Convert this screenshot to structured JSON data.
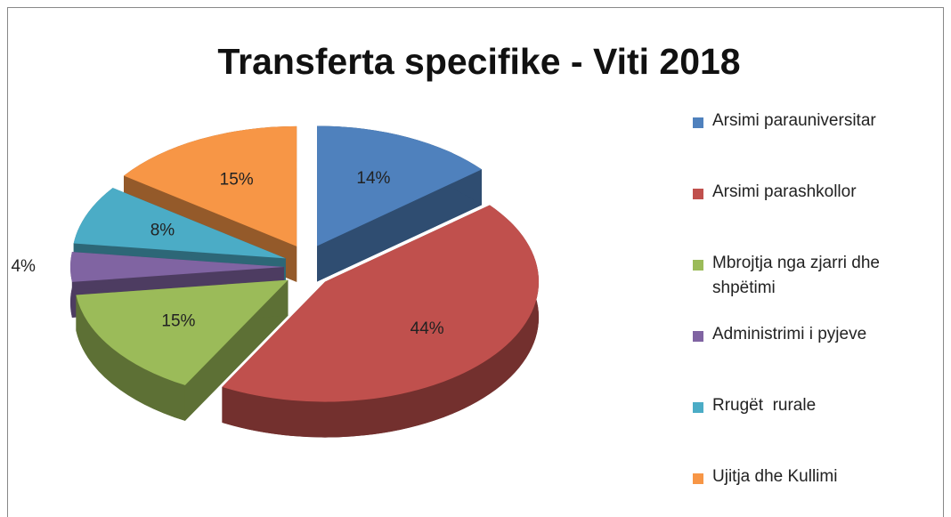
{
  "chart_data": {
    "type": "pie",
    "title": "Transferta specifike - Viti 2018",
    "categories": [
      "Arsimi parauniversitar",
      "Arsimi parashkollor",
      "Mbrojtja nga zjarri dhe shpëtimi",
      "Administrimi i pyjeve",
      "Rrugët  rurale",
      "Ujitja dhe Kullimi"
    ],
    "values": [
      14,
      44,
      15,
      4,
      8,
      15
    ],
    "value_labels": [
      "14%",
      "44%",
      "15%",
      "4%",
      "8%",
      "15%"
    ],
    "colors": [
      "#4f81bd",
      "#c0504d",
      "#9bbb59",
      "#8064a2",
      "#4bacc6",
      "#f79646"
    ],
    "legend": "right"
  }
}
